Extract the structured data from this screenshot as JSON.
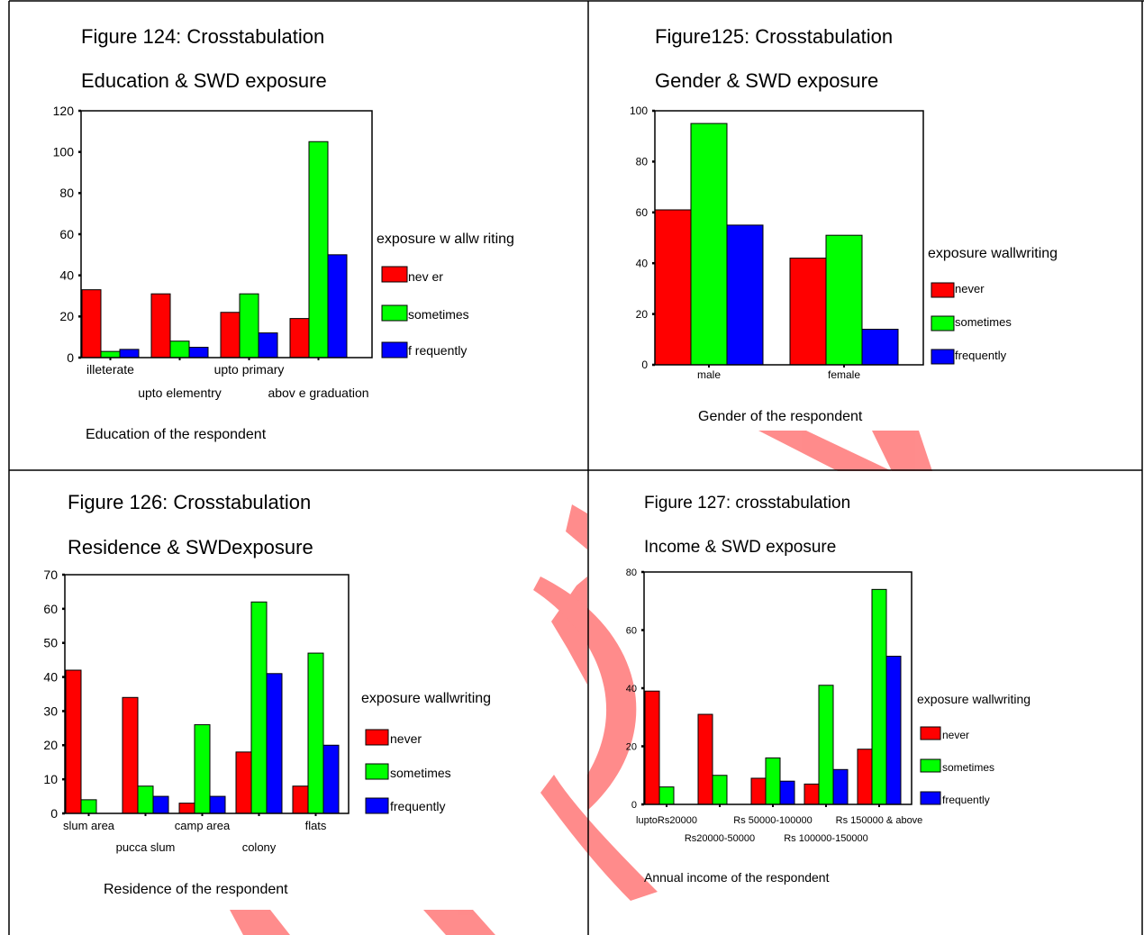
{
  "colors": {
    "never": "#ff0000",
    "sometimes": "#00ff00",
    "frequently": "#0000ff",
    "watermark": "#ff7f7f"
  },
  "panels": [
    {
      "figure_label": "Figure 124: Crosstabulation",
      "title": "Education & SWD exposure",
      "legend_title": "exposure w allw riting",
      "legend_labels": [
        "nev er",
        "sometimes",
        "f requently"
      ],
      "xlabel": "Education of the respondent"
    },
    {
      "figure_label": "Figure125: Crosstabulation",
      "title": "Gender & SWD exposure",
      "legend_title": "exposure  wallwriting",
      "legend_labels": [
        "never",
        "sometimes",
        "frequently"
      ],
      "xlabel": "Gender of the respondent"
    },
    {
      "figure_label": "Figure  126:  Crosstabulation",
      "title": "Residence & SWDexposure",
      "legend_title": "exposure  wallwriting",
      "legend_labels": [
        "never",
        "sometimes",
        "frequently"
      ],
      "xlabel": "Residence  of  the  respondent"
    },
    {
      "figure_label": "Figure 127: crosstabulation",
      "title": "Income & SWD exposure",
      "legend_title": "exposure  wallwriting",
      "legend_labels": [
        "never",
        "sometimes",
        "frequently"
      ],
      "xlabel": "Annual income of the respondent"
    }
  ],
  "chart_data": [
    {
      "type": "bar",
      "categories": [
        "illeterate",
        "upto elementry",
        "upto primary",
        "abov e graduation"
      ],
      "series": [
        {
          "name": "nev er",
          "values": [
            33,
            31,
            22,
            19
          ]
        },
        {
          "name": "sometimes",
          "values": [
            3,
            8,
            31,
            105
          ]
        },
        {
          "name": "f requently",
          "values": [
            4,
            5,
            12,
            50
          ]
        }
      ],
      "yticks": [
        0,
        20,
        40,
        60,
        80,
        100,
        120
      ],
      "ylim": [
        0,
        120
      ]
    },
    {
      "type": "bar",
      "categories": [
        "male",
        "female"
      ],
      "series": [
        {
          "name": "never",
          "values": [
            61,
            42
          ]
        },
        {
          "name": "sometimes",
          "values": [
            95,
            51
          ]
        },
        {
          "name": "frequently",
          "values": [
            55,
            14
          ]
        }
      ],
      "yticks": [
        0,
        20,
        40,
        60,
        80,
        100
      ],
      "ylim": [
        0,
        100
      ]
    },
    {
      "type": "bar",
      "categories": [
        "slum area",
        "pucca slum",
        "camp area",
        "colony",
        "flats"
      ],
      "series": [
        {
          "name": "never",
          "values": [
            42,
            34,
            3,
            18,
            8
          ]
        },
        {
          "name": "sometimes",
          "values": [
            4,
            8,
            26,
            62,
            47
          ]
        },
        {
          "name": "frequently",
          "values": [
            0,
            5,
            5,
            41,
            20
          ]
        }
      ],
      "yticks": [
        0,
        10,
        20,
        30,
        40,
        50,
        60,
        70
      ],
      "ylim": [
        0,
        70
      ]
    },
    {
      "type": "bar",
      "categories": [
        "luptoRs20000",
        "Rs20000-50000",
        "Rs 50000-100000",
        "Rs 100000-150000",
        "Rs 150000 & above"
      ],
      "series": [
        {
          "name": "never",
          "values": [
            39,
            31,
            9,
            7,
            19
          ]
        },
        {
          "name": "sometimes",
          "values": [
            6,
            10,
            16,
            41,
            74
          ]
        },
        {
          "name": "frequently",
          "values": [
            0,
            0,
            8,
            12,
            51
          ]
        }
      ],
      "yticks": [
        0,
        20,
        40,
        60,
        80
      ],
      "ylim": [
        0,
        80
      ]
    }
  ]
}
